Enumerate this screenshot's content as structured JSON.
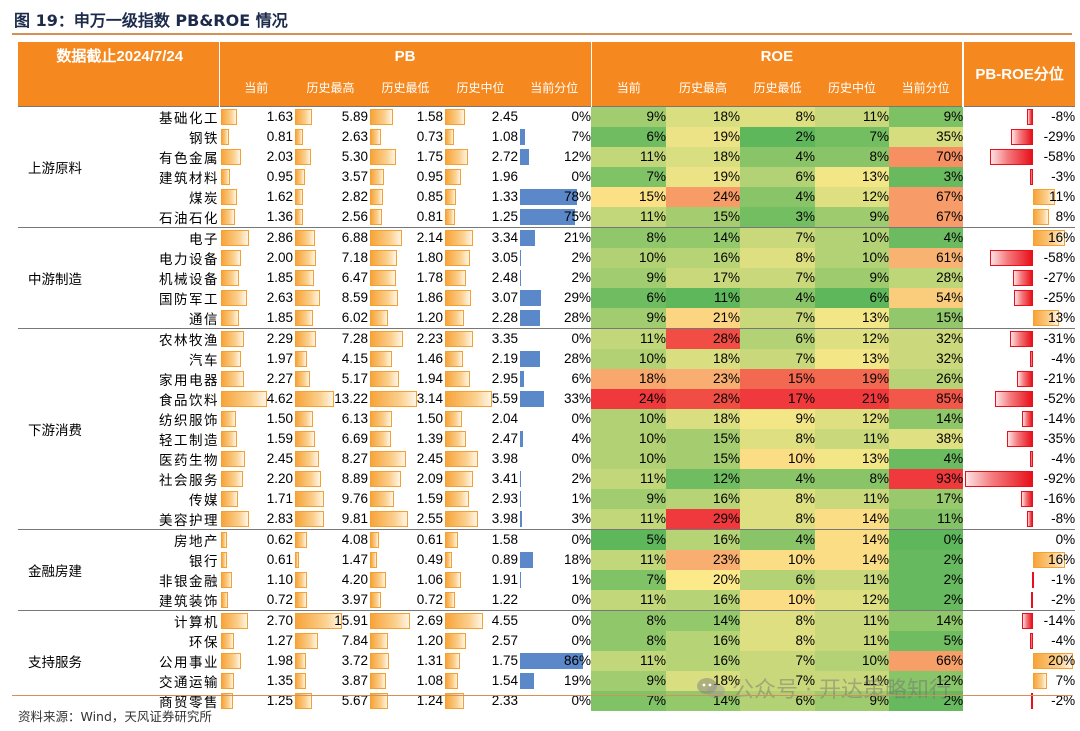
{
  "title": "图 19：申万一级指数 PB&ROE 情况",
  "cutoff_note": "数据截止2024/7/24",
  "header": {
    "pb_label": "PB",
    "roe_label": "ROE",
    "pbroe_label": "PB-ROE分位",
    "pb_cols": [
      "当前",
      "历史最高",
      "历史最低",
      "历史中位",
      "当前分位"
    ],
    "roe_cols": [
      "当前",
      "历史最高",
      "历史最低",
      "历史中位",
      "当前分位"
    ]
  },
  "colors": {
    "header_bg": "#f5891f",
    "pb_bar": "#f7a43a",
    "percentile_bar": "#5b88c9",
    "negative_bar": "#e8101a",
    "heat_low": "#5fb75c",
    "heat_mid": "#fce98a",
    "heat_high": "#f0393c"
  },
  "groups": [
    {
      "name": "上游原料",
      "rows": [
        {
          "industry": "基础化工",
          "pb": [
            "1.63",
            "5.89",
            "1.58",
            "2.45",
            "0%"
          ],
          "roe": [
            "9%",
            "18%",
            "8%",
            "11%",
            "9%"
          ],
          "pb_roe": "-8%"
        },
        {
          "industry": "钢铁",
          "pb": [
            "0.81",
            "2.63",
            "0.73",
            "1.08",
            "7%"
          ],
          "roe": [
            "6%",
            "19%",
            "2%",
            "7%",
            "35%"
          ],
          "pb_roe": "-29%"
        },
        {
          "industry": "有色金属",
          "pb": [
            "2.03",
            "5.30",
            "1.75",
            "2.72",
            "12%"
          ],
          "roe": [
            "11%",
            "18%",
            "4%",
            "8%",
            "70%"
          ],
          "pb_roe": "-58%"
        },
        {
          "industry": "建筑材料",
          "pb": [
            "0.95",
            "3.57",
            "0.95",
            "1.96",
            "0%"
          ],
          "roe": [
            "7%",
            "19%",
            "6%",
            "13%",
            "3%"
          ],
          "pb_roe": "-3%"
        },
        {
          "industry": "煤炭",
          "pb": [
            "1.62",
            "2.82",
            "0.85",
            "1.33",
            "78%"
          ],
          "roe": [
            "15%",
            "24%",
            "4%",
            "12%",
            "67%"
          ],
          "pb_roe": "11%"
        },
        {
          "industry": "石油石化",
          "pb": [
            "1.36",
            "2.56",
            "0.81",
            "1.25",
            "75%"
          ],
          "roe": [
            "11%",
            "15%",
            "3%",
            "9%",
            "67%"
          ],
          "pb_roe": "8%"
        }
      ]
    },
    {
      "name": "中游制造",
      "rows": [
        {
          "industry": "电子",
          "pb": [
            "2.86",
            "6.88",
            "2.14",
            "3.34",
            "21%"
          ],
          "roe": [
            "8%",
            "14%",
            "7%",
            "10%",
            "4%"
          ],
          "pb_roe": "16%"
        },
        {
          "industry": "电力设备",
          "pb": [
            "2.00",
            "7.18",
            "1.80",
            "3.05",
            "2%"
          ],
          "roe": [
            "10%",
            "16%",
            "8%",
            "10%",
            "61%"
          ],
          "pb_roe": "-58%"
        },
        {
          "industry": "机械设备",
          "pb": [
            "1.85",
            "6.47",
            "1.78",
            "2.48",
            "2%"
          ],
          "roe": [
            "9%",
            "17%",
            "7%",
            "9%",
            "28%"
          ],
          "pb_roe": "-27%"
        },
        {
          "industry": "国防军工",
          "pb": [
            "2.63",
            "8.59",
            "1.86",
            "3.07",
            "29%"
          ],
          "roe": [
            "6%",
            "11%",
            "4%",
            "6%",
            "54%"
          ],
          "pb_roe": "-25%"
        },
        {
          "industry": "通信",
          "pb": [
            "1.85",
            "6.02",
            "1.20",
            "2.28",
            "28%"
          ],
          "roe": [
            "9%",
            "21%",
            "7%",
            "13%",
            "15%"
          ],
          "pb_roe": "13%"
        }
      ]
    },
    {
      "name": "下游消费",
      "rows": [
        {
          "industry": "农林牧渔",
          "pb": [
            "2.29",
            "7.28",
            "2.23",
            "3.35",
            "0%"
          ],
          "roe": [
            "11%",
            "28%",
            "6%",
            "12%",
            "32%"
          ],
          "pb_roe": "-31%"
        },
        {
          "industry": "汽车",
          "pb": [
            "1.97",
            "4.15",
            "1.46",
            "2.19",
            "28%"
          ],
          "roe": [
            "10%",
            "18%",
            "7%",
            "13%",
            "32%"
          ],
          "pb_roe": "-4%"
        },
        {
          "industry": "家用电器",
          "pb": [
            "2.27",
            "5.17",
            "1.94",
            "2.95",
            "6%"
          ],
          "roe": [
            "18%",
            "23%",
            "15%",
            "19%",
            "26%"
          ],
          "pb_roe": "-21%"
        },
        {
          "industry": "食品饮料",
          "pb": [
            "4.62",
            "13.22",
            "3.14",
            "5.59",
            "33%"
          ],
          "roe": [
            "24%",
            "28%",
            "17%",
            "21%",
            "85%"
          ],
          "pb_roe": "-52%"
        },
        {
          "industry": "纺织服饰",
          "pb": [
            "1.50",
            "6.13",
            "1.50",
            "2.04",
            "0%"
          ],
          "roe": [
            "10%",
            "18%",
            "9%",
            "12%",
            "14%"
          ],
          "pb_roe": "-14%"
        },
        {
          "industry": "轻工制造",
          "pb": [
            "1.59",
            "6.69",
            "1.39",
            "2.47",
            "4%"
          ],
          "roe": [
            "10%",
            "15%",
            "8%",
            "11%",
            "38%"
          ],
          "pb_roe": "-35%"
        },
        {
          "industry": "医药生物",
          "pb": [
            "2.45",
            "8.27",
            "2.45",
            "3.98",
            "0%"
          ],
          "roe": [
            "10%",
            "15%",
            "10%",
            "13%",
            "4%"
          ],
          "pb_roe": "-4%"
        },
        {
          "industry": "社会服务",
          "pb": [
            "2.20",
            "8.89",
            "2.09",
            "3.41",
            "2%"
          ],
          "roe": [
            "11%",
            "12%",
            "4%",
            "8%",
            "93%"
          ],
          "pb_roe": "-92%"
        },
        {
          "industry": "传媒",
          "pb": [
            "1.71",
            "9.76",
            "1.59",
            "2.93",
            "1%"
          ],
          "roe": [
            "9%",
            "16%",
            "8%",
            "11%",
            "17%"
          ],
          "pb_roe": "-16%"
        },
        {
          "industry": "美容护理",
          "pb": [
            "2.83",
            "9.81",
            "2.55",
            "3.98",
            "3%"
          ],
          "roe": [
            "11%",
            "29%",
            "8%",
            "14%",
            "11%"
          ],
          "pb_roe": "-8%"
        }
      ]
    },
    {
      "name": "金融房建",
      "rows": [
        {
          "industry": "房地产",
          "pb": [
            "0.62",
            "4.08",
            "0.61",
            "1.58",
            "0%"
          ],
          "roe": [
            "5%",
            "16%",
            "4%",
            "14%",
            "0%"
          ],
          "pb_roe": "0%"
        },
        {
          "industry": "银行",
          "pb": [
            "0.61",
            "1.47",
            "0.49",
            "0.89",
            "18%"
          ],
          "roe": [
            "11%",
            "23%",
            "10%",
            "14%",
            "2%"
          ],
          "pb_roe": "16%"
        },
        {
          "industry": "非银金融",
          "pb": [
            "1.10",
            "4.20",
            "1.06",
            "1.91",
            "1%"
          ],
          "roe": [
            "7%",
            "20%",
            "6%",
            "11%",
            "2%"
          ],
          "pb_roe": "-1%"
        },
        {
          "industry": "建筑装饰",
          "pb": [
            "0.72",
            "3.97",
            "0.72",
            "1.22",
            "0%"
          ],
          "roe": [
            "11%",
            "16%",
            "10%",
            "12%",
            "2%"
          ],
          "pb_roe": "-2%"
        }
      ]
    },
    {
      "name": "支持服务",
      "rows": [
        {
          "industry": "计算机",
          "pb": [
            "2.70",
            "15.91",
            "2.69",
            "4.55",
            "0%"
          ],
          "roe": [
            "8%",
            "14%",
            "8%",
            "11%",
            "14%"
          ],
          "pb_roe": "-14%"
        },
        {
          "industry": "环保",
          "pb": [
            "1.27",
            "7.84",
            "1.20",
            "2.57",
            "0%"
          ],
          "roe": [
            "8%",
            "16%",
            "8%",
            "11%",
            "5%"
          ],
          "pb_roe": "-4%"
        },
        {
          "industry": "公用事业",
          "pb": [
            "1.98",
            "3.72",
            "1.31",
            "1.75",
            "86%"
          ],
          "roe": [
            "11%",
            "16%",
            "7%",
            "10%",
            "66%"
          ],
          "pb_roe": "20%"
        },
        {
          "industry": "交通运输",
          "pb": [
            "1.35",
            "3.87",
            "1.08",
            "1.54",
            "19%"
          ],
          "roe": [
            "9%",
            "18%",
            "7%",
            "11%",
            "12%"
          ],
          "pb_roe": "7%"
        },
        {
          "industry": "商贸零售",
          "pb": [
            "1.25",
            "5.67",
            "1.24",
            "2.33",
            "0%"
          ],
          "roe": [
            "7%",
            "14%",
            "6%",
            "9%",
            "2%"
          ],
          "pb_roe": "-2%"
        }
      ]
    }
  ],
  "source": "资料来源：Wind，天风证券研究所",
  "watermark": "公众号 · 开达策略知行"
}
